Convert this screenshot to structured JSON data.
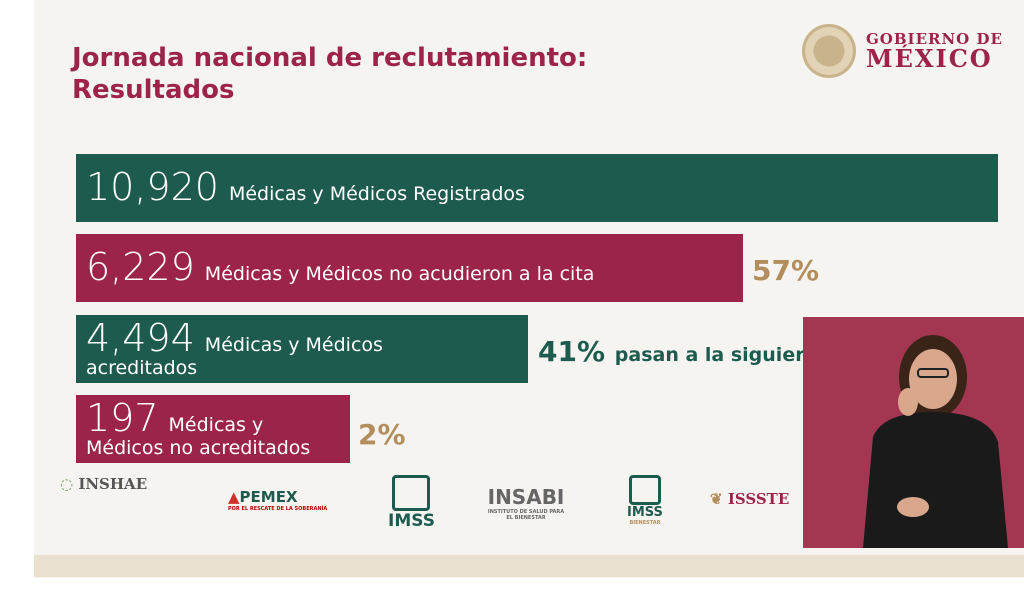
{
  "title": {
    "line1": "Jornada nacional de reclutamiento:",
    "line2": "Resultados"
  },
  "brand": {
    "line1": "GOBIERNO DE",
    "line2": "MÉXICO"
  },
  "colors": {
    "green": "#1e5b4f",
    "maroon": "#9d2449",
    "gold": "#b38e5d"
  },
  "bars": [
    {
      "value": "10,920",
      "label": "Médicas y Médicos Registrados",
      "color": "green"
    },
    {
      "value": "6,229",
      "label": "Médicas y Médicos no acudieron a la cita",
      "percent": "57%",
      "color": "maroon"
    },
    {
      "value": "4,494",
      "label": "Médicas y Médicos",
      "label2": "acreditados",
      "percent": "41%",
      "note": "pasan a la siguier",
      "color": "green"
    },
    {
      "value": "197",
      "label": "Médicas y",
      "label2": "Médicos no acreditados",
      "percent": "2%",
      "color": "maroon"
    }
  ],
  "logos": [
    "INSHAE",
    "PEMEX",
    "IMSS",
    "INSABI",
    "IMSS",
    "ISSSTE"
  ],
  "logo_subtexts": {
    "pemex": "POR EL RESCATE DE LA SOBERANÍA",
    "insabi": "INSTITUTO DE SALUD PARA EL BIENESTAR",
    "imss2": "BIENESTAR"
  }
}
